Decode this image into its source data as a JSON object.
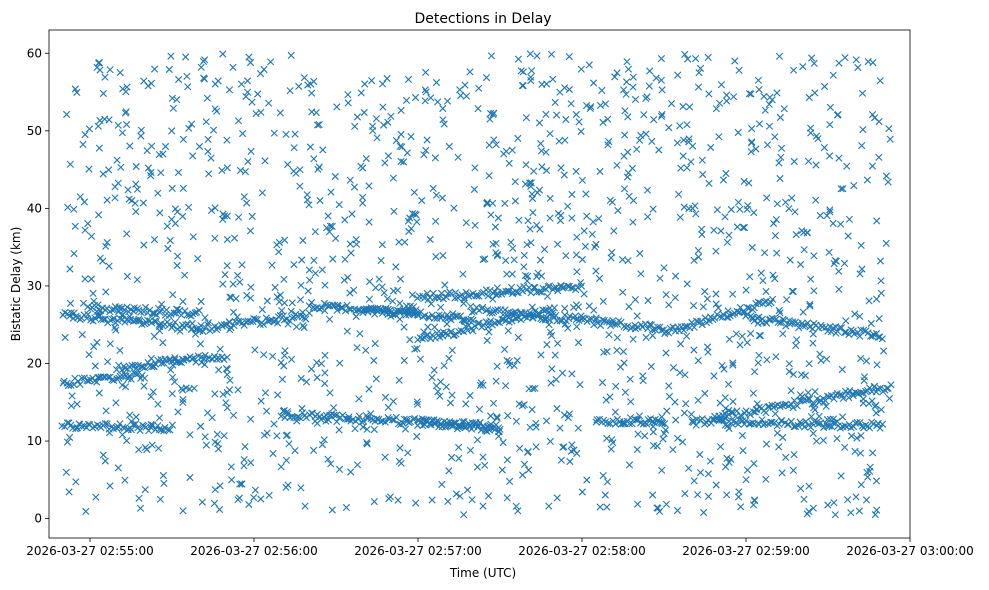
{
  "chart_data": {
    "type": "scatter",
    "title": "Detections in Delay",
    "xlabel": "Time (UTC)",
    "ylabel": "Bistatic Delay (km)",
    "marker": "x",
    "color": "#1f77b4",
    "grid": false,
    "xlim": [
      "2026-03-27 02:54:45",
      "2026-03-27 03:00:00"
    ],
    "ylim": [
      -2.5,
      63
    ],
    "x_ticks": [
      "2026-03-27 02:55:00",
      "2026-03-27 02:56:00",
      "2026-03-27 02:57:00",
      "2026-03-27 02:58:00",
      "2026-03-27 02:59:00",
      "2026-03-27 03:00:00"
    ],
    "y_ticks": [
      0,
      10,
      20,
      30,
      40,
      50,
      60
    ],
    "data_range": {
      "x": [
        "2026-03-27 02:54:50",
        "2026-03-27 02:59:53"
      ],
      "y": [
        0.5,
        60
      ]
    },
    "tracks": [
      {
        "x": [
          "2026-03-27 02:54:50",
          "2026-03-27 02:55:40"
        ],
        "y": [
          26.2,
          24.6
        ]
      },
      {
        "x": [
          "2026-03-27 02:55:00",
          "2026-03-27 02:55:40"
        ],
        "y": [
          27.2,
          26.4
        ]
      },
      {
        "x": [
          "2026-03-27 02:55:40",
          "2026-03-27 02:56:20"
        ],
        "y": [
          24.5,
          26.2
        ]
      },
      {
        "x": [
          "2026-03-27 02:56:20",
          "2026-03-27 02:57:00"
        ],
        "y": [
          27.5,
          26.5
        ]
      },
      {
        "x": [
          "2026-03-27 02:56:40",
          "2026-03-27 02:57:20"
        ],
        "y": [
          26.8,
          25.8
        ]
      },
      {
        "x": [
          "2026-03-27 02:57:00",
          "2026-03-27 02:58:00"
        ],
        "y": [
          28.5,
          30.0
        ]
      },
      {
        "x": [
          "2026-03-27 02:57:00",
          "2026-03-27 02:57:50"
        ],
        "y": [
          23.0,
          27.0
        ]
      },
      {
        "x": [
          "2026-03-27 02:57:20",
          "2026-03-27 02:58:30"
        ],
        "y": [
          27.0,
          24.5
        ]
      },
      {
        "x": [
          "2026-03-27 02:58:30",
          "2026-03-27 02:59:10"
        ],
        "y": [
          24.0,
          28.0
        ]
      },
      {
        "x": [
          "2026-03-27 02:59:00",
          "2026-03-27 02:59:50"
        ],
        "y": [
          26.0,
          23.5
        ]
      },
      {
        "x": [
          "2026-03-27 02:54:50",
          "2026-03-27 02:55:20"
        ],
        "y": [
          17.5,
          18.5
        ]
      },
      {
        "x": [
          "2026-03-27 02:55:10",
          "2026-03-27 02:55:50"
        ],
        "y": [
          19.5,
          21.0
        ]
      },
      {
        "x": [
          "2026-03-27 02:54:50",
          "2026-03-27 02:55:30"
        ],
        "y": [
          12.0,
          11.7
        ]
      },
      {
        "x": [
          "2026-03-27 02:56:10",
          "2026-03-27 02:57:30"
        ],
        "y": [
          13.5,
          11.8
        ]
      },
      {
        "x": [
          "2026-03-27 02:57:00",
          "2026-03-27 02:57:30"
        ],
        "y": [
          12.5,
          11.5
        ]
      },
      {
        "x": [
          "2026-03-27 02:58:05",
          "2026-03-27 02:58:30"
        ],
        "y": [
          12.5,
          12.5
        ]
      },
      {
        "x": [
          "2026-03-27 02:58:40",
          "2026-03-27 02:59:50"
        ],
        "y": [
          12.5,
          12.0
        ]
      },
      {
        "x": [
          "2026-03-27 02:58:50",
          "2026-03-27 02:59:53"
        ],
        "y": [
          13.0,
          17.0
        ]
      }
    ]
  }
}
